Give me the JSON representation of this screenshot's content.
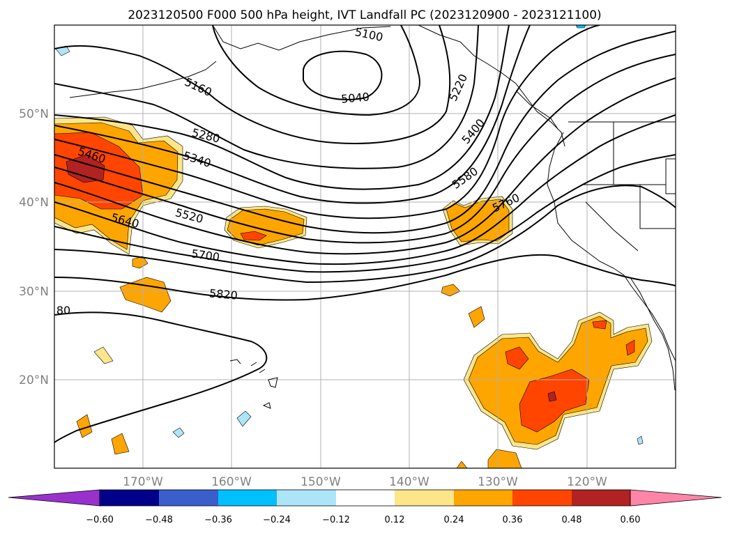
{
  "title": "2023120500 F000 500 hPa height, IVT Landfall PC (2023120900 - 2023121100)",
  "lat_ticks": [
    "50°N",
    "40°N",
    "30°N",
    "20°N"
  ],
  "lon_ticks": [
    "170°W",
    "160°W",
    "150°W",
    "140°W",
    "130°W",
    "120°W"
  ],
  "height_contour_labels": [
    "5100",
    "5040",
    "5160",
    "5220",
    "5280",
    "5340",
    "5400",
    "5460",
    "5520",
    "5580",
    "5640",
    "5700",
    "5760",
    "5820",
    "80"
  ],
  "colorbar": {
    "tick_labels": [
      "−0.60",
      "−0.48",
      "−0.36",
      "−0.24",
      "−0.12",
      "0.12",
      "0.24",
      "0.36",
      "0.48",
      "0.60"
    ],
    "colors": [
      "#9932cc",
      "#00008b",
      "#3a5fcd",
      "#00bfff",
      "#ade5f8",
      "#ffffff",
      "#fde68a",
      "#ffa500",
      "#ff4500",
      "#b22222",
      "#ff85a8"
    ]
  },
  "fill_colors": {
    "light_yellow": "#fde68a",
    "orange": "#ffa500",
    "red_orange": "#ff4500",
    "dark_red": "#b22222",
    "light_blue": "#ade5f8",
    "sky_blue": "#00bfff"
  }
}
